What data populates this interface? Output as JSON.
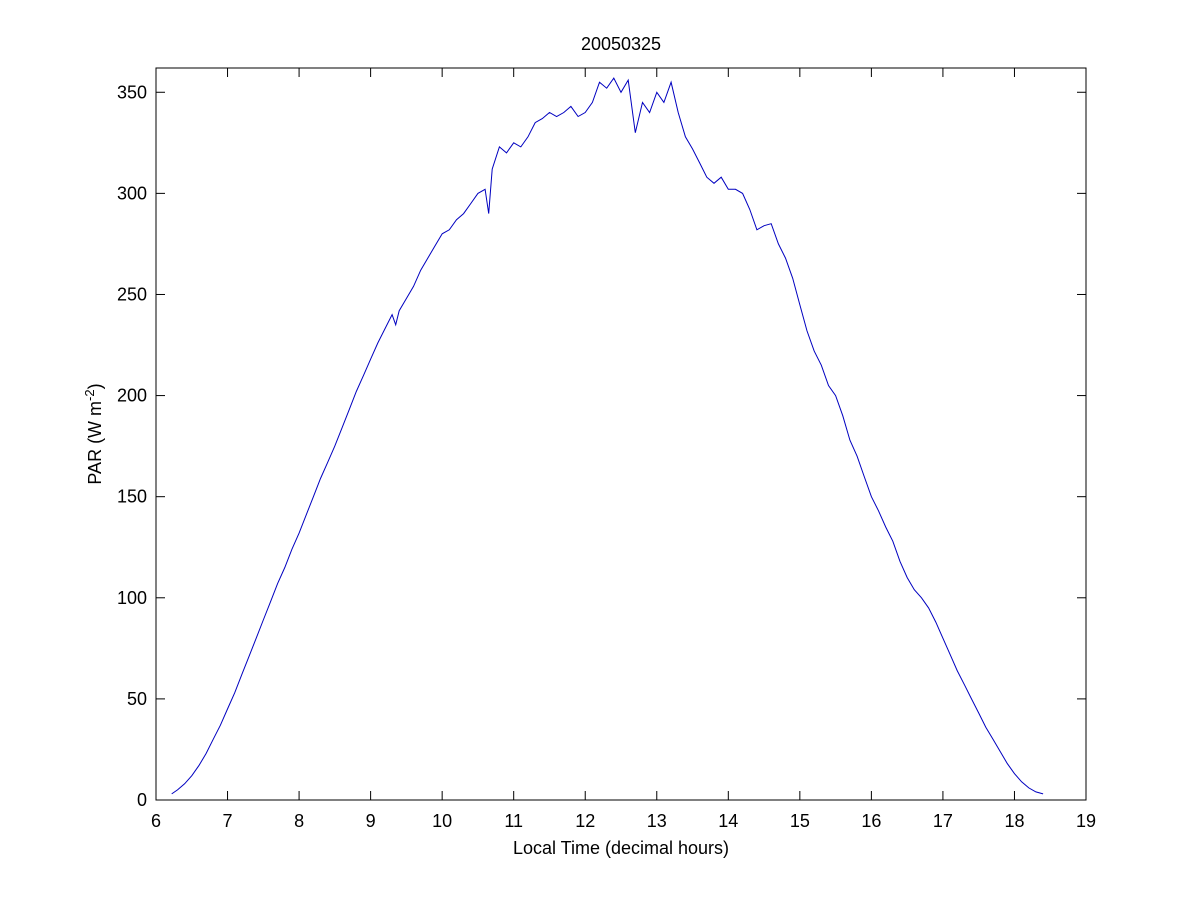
{
  "chart_data": {
    "type": "line",
    "title": "20050325",
    "xlabel": "Local Time (decimal hours)",
    "ylabel": "PAR (W m",
    "ylabel_superscript": "-2",
    "ylabel_close": ")",
    "xlim": [
      6,
      19
    ],
    "ylim": [
      0,
      362
    ],
    "xticks": [
      6,
      7,
      8,
      9,
      10,
      11,
      12,
      13,
      14,
      15,
      16,
      17,
      18,
      19
    ],
    "yticks": [
      0,
      50,
      100,
      150,
      200,
      250,
      300,
      350
    ],
    "grid": false,
    "legend": "none",
    "line_color": "#0000c0",
    "series": [
      {
        "x": [
          6.22,
          6.3,
          6.4,
          6.5,
          6.6,
          6.7,
          6.8,
          6.9,
          7.0,
          7.1,
          7.2,
          7.3,
          7.4,
          7.5,
          7.6,
          7.7,
          7.8,
          7.9,
          8.0,
          8.1,
          8.2,
          8.3,
          8.4,
          8.5,
          8.6,
          8.7,
          8.8,
          8.9,
          9.0,
          9.1,
          9.2,
          9.3,
          9.35,
          9.4,
          9.5,
          9.6,
          9.7,
          9.8,
          9.9,
          10.0,
          10.1,
          10.2,
          10.3,
          10.4,
          10.5,
          10.6,
          10.65,
          10.7,
          10.8,
          10.9,
          11.0,
          11.1,
          11.2,
          11.3,
          11.4,
          11.5,
          11.6,
          11.7,
          11.8,
          11.9,
          12.0,
          12.1,
          12.2,
          12.3,
          12.4,
          12.5,
          12.6,
          12.7,
          12.8,
          12.9,
          13.0,
          13.1,
          13.2,
          13.3,
          13.4,
          13.5,
          13.6,
          13.7,
          13.8,
          13.9,
          14.0,
          14.1,
          14.2,
          14.3,
          14.4,
          14.5,
          14.6,
          14.7,
          14.8,
          14.9,
          15.0,
          15.1,
          15.2,
          15.3,
          15.4,
          15.5,
          15.6,
          15.7,
          15.8,
          15.9,
          16.0,
          16.1,
          16.2,
          16.3,
          16.4,
          16.5,
          16.6,
          16.7,
          16.8,
          16.9,
          17.0,
          17.1,
          17.2,
          17.3,
          17.4,
          17.5,
          17.6,
          17.7,
          17.8,
          17.9,
          18.0,
          18.1,
          18.2,
          18.3,
          18.4
        ],
        "y": [
          3,
          5,
          8,
          12,
          17,
          23,
          30,
          37,
          45,
          53,
          62,
          71,
          80,
          89,
          98,
          107,
          115,
          124,
          132,
          141,
          150,
          159,
          167,
          175,
          184,
          193,
          202,
          210,
          218,
          226,
          233,
          240,
          235,
          242,
          248,
          254,
          262,
          268,
          274,
          280,
          282,
          287,
          290,
          295,
          300,
          302,
          290,
          312,
          323,
          320,
          325,
          323,
          328,
          335,
          337,
          340,
          338,
          340,
          343,
          338,
          340,
          345,
          355,
          352,
          357,
          350,
          356,
          330,
          345,
          340,
          350,
          345,
          355,
          340,
          328,
          322,
          315,
          308,
          305,
          308,
          302,
          302,
          300,
          292,
          282,
          284,
          285,
          275,
          268,
          258,
          245,
          232,
          222,
          215,
          205,
          200,
          190,
          178,
          170,
          160,
          150,
          143,
          135,
          128,
          118,
          110,
          104,
          100,
          95,
          88,
          80,
          72,
          64,
          57,
          50,
          43,
          36,
          30,
          24,
          18,
          13,
          9,
          6,
          4,
          3
        ]
      }
    ]
  }
}
